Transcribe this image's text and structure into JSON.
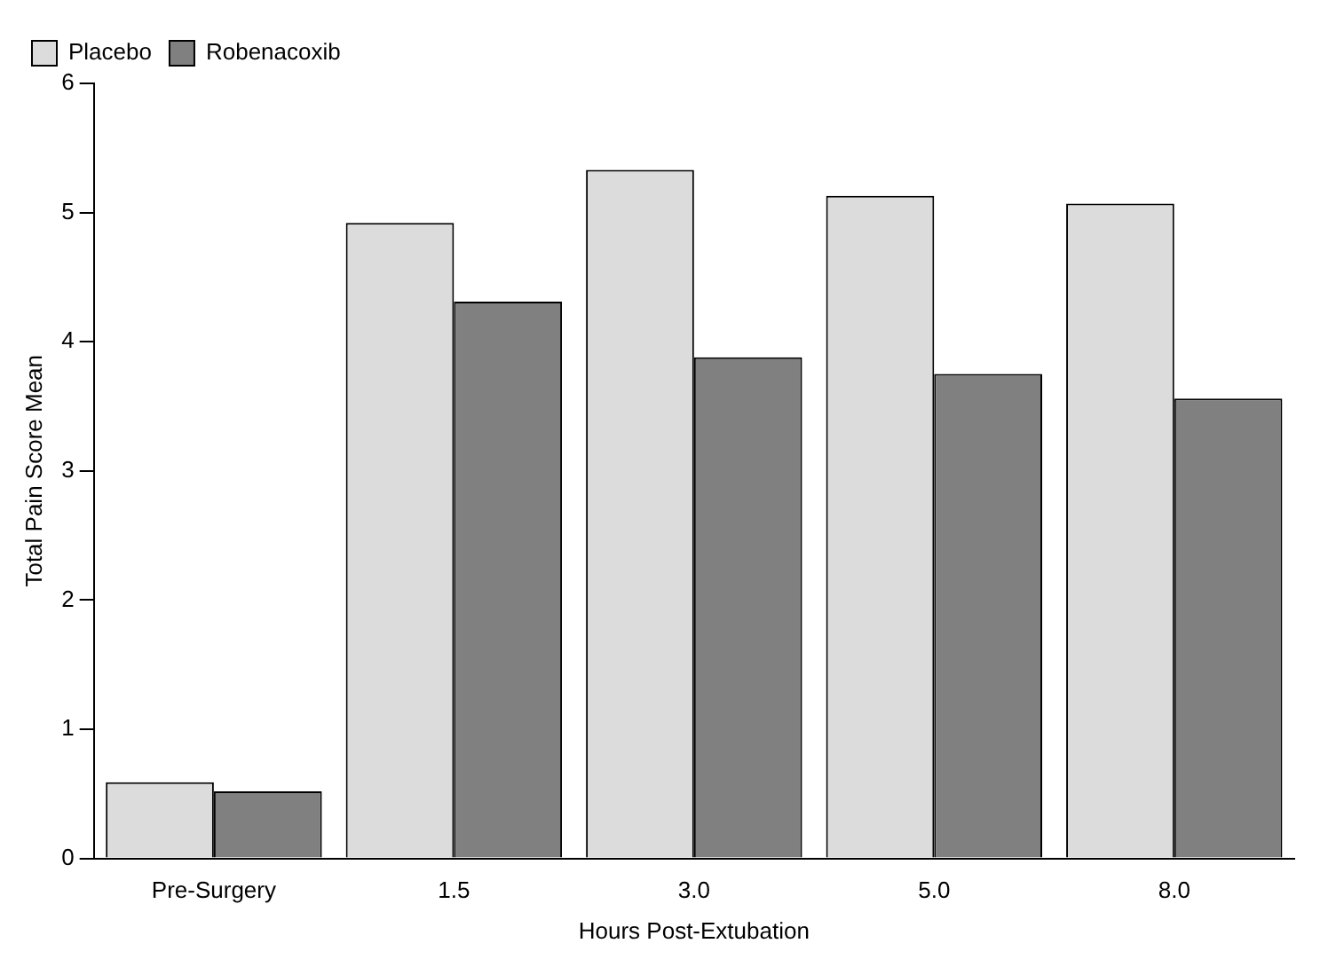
{
  "chart_data": {
    "type": "bar",
    "xlabel": "Hours Post-Extubation",
    "ylabel": "Total Pain Score Mean",
    "categories": [
      "Pre-Surgery",
      "1.5",
      "3.0",
      "5.0",
      "8.0"
    ],
    "series": [
      {
        "name": "Placebo",
        "color": "#dcdcdc",
        "values": [
          0.59,
          4.92,
          5.33,
          5.13,
          5.07
        ]
      },
      {
        "name": "Robenacoxib",
        "color": "#808080",
        "values": [
          0.52,
          4.31,
          3.88,
          3.75,
          3.56
        ]
      }
    ],
    "ylim": [
      0,
      6
    ],
    "yticks": [
      0,
      1,
      2,
      3,
      4,
      5,
      6
    ],
    "grid": false,
    "legend": "top left"
  }
}
